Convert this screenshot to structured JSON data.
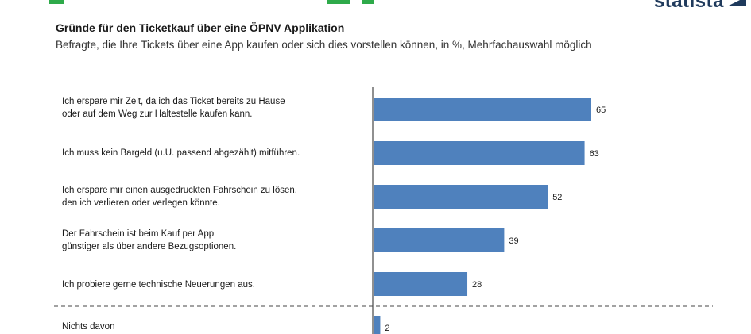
{
  "header": {
    "title": "Gründe für den Ticketkauf über eine ÖPNV Applikation",
    "subtitle": "Befragte, die Ihre Tickets über eine App kaufen oder sich dies vorstellen können, in %, Mehrfachauswahl möglich",
    "logo": "statista"
  },
  "colors": {
    "bar": "#4f81bd",
    "accent": "#2eaa4a",
    "brand": "#1f3a5c"
  },
  "chart_data": {
    "type": "bar",
    "orientation": "horizontal",
    "categories": [
      "Ich erspare mir Zeit,  da ich das Ticket bereits zu Hause\noder auf dem Weg zur Haltestelle kaufen kann.",
      "Ich muss kein Bargeld (u.U. passend abgezählt) mitführen.",
      "Ich erspare mir einen ausgedruckten Fahrschein zu lösen,\nden ich verlieren oder verlegen könnte.",
      "Der Fahrschein ist beim Kauf per App\ngünstiger als über andere Bezugsoptionen.",
      "Ich probiere gerne technische  Neuerungen aus.",
      "Nichts davon"
    ],
    "values": [
      65,
      63,
      52,
      39,
      28,
      2
    ],
    "value_labels": [
      "65",
      "63",
      "52",
      "39",
      "28",
      "2"
    ],
    "xlim": [
      0,
      100
    ],
    "grid": false,
    "legend": "none",
    "title": "Gründe für den Ticketkauf über eine ÖPNV Applikation",
    "xlabel": "",
    "ylabel": ""
  }
}
